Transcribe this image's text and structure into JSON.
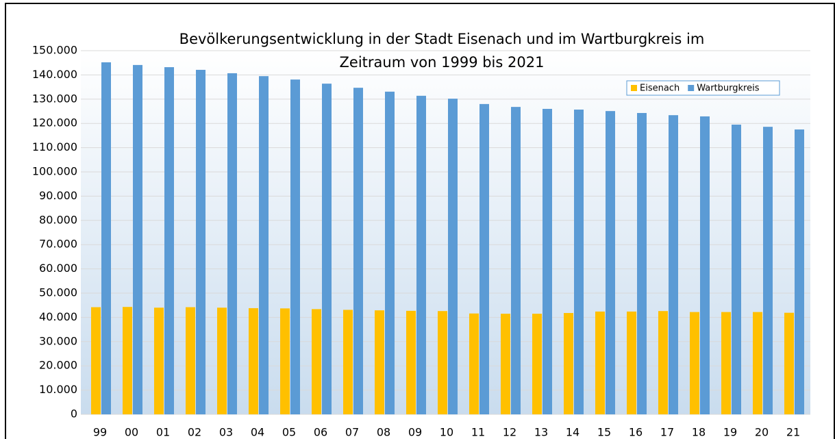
{
  "chart_data": {
    "type": "bar",
    "title": [
      "Bevölkerungsentwicklung in der Stadt Eisenach und im Wartburgkreis im",
      "Zeitraum von 1999 bis 2021"
    ],
    "categories": [
      "99",
      "00",
      "01",
      "02",
      "03",
      "04",
      "05",
      "06",
      "07",
      "08",
      "09",
      "10",
      "11",
      "12",
      "13",
      "14",
      "15",
      "16",
      "17",
      "18",
      "19",
      "20",
      "21"
    ],
    "series": [
      {
        "name": "Eisenach",
        "color": "#ffc000",
        "values": [
          44200,
          44300,
          44000,
          44200,
          44000,
          43800,
          43700,
          43400,
          43100,
          42900,
          42700,
          42600,
          41600,
          41500,
          41500,
          41800,
          42400,
          42400,
          42600,
          42200,
          42200,
          42200,
          41900
        ]
      },
      {
        "name": "Wartburgkreis",
        "color": "#5b9bd5",
        "values": [
          145200,
          144100,
          143200,
          142100,
          140700,
          139500,
          138100,
          136400,
          134700,
          133100,
          131400,
          130200,
          128000,
          126800,
          126000,
          125700,
          125100,
          124300,
          123400,
          122900,
          119500,
          118600,
          117500
        ]
      }
    ],
    "ylim": [
      0,
      150000
    ],
    "yticks": [
      0,
      {
        "value": 10000,
        "label": "10.000"
      },
      {
        "value": 20000,
        "label": "20.000"
      },
      {
        "value": 30000,
        "label": "30.000"
      },
      {
        "value": 40000,
        "label": "40.000"
      },
      {
        "value": 50000,
        "label": "50.000"
      },
      {
        "value": 60000,
        "label": "60.000"
      },
      {
        "value": 70000,
        "label": "70.000"
      },
      {
        "value": 80000,
        "label": "80.000"
      },
      {
        "value": 90000,
        "label": "90.000"
      },
      {
        "value": 100000,
        "label": "100.000"
      },
      {
        "value": 110000,
        "label": "110.000"
      },
      {
        "value": 120000,
        "label": "120.000"
      },
      {
        "value": 130000,
        "label": "130.000"
      },
      {
        "value": 140000,
        "label": "140.000"
      },
      {
        "value": 150000,
        "label": "150.000"
      }
    ],
    "grid": true,
    "legend": "top-right"
  }
}
